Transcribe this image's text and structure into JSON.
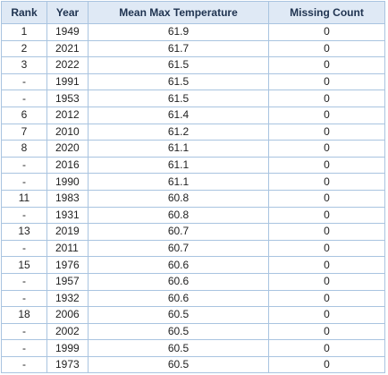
{
  "table": {
    "headers": [
      "Rank",
      "Year",
      "Mean Max Temperature",
      "Missing Count"
    ],
    "rows": [
      [
        "1",
        "1949",
        "61.9",
        "0"
      ],
      [
        "2",
        "2021",
        "61.7",
        "0"
      ],
      [
        "3",
        "2022",
        "61.5",
        "0"
      ],
      [
        "-",
        "1991",
        "61.5",
        "0"
      ],
      [
        "-",
        "1953",
        "61.5",
        "0"
      ],
      [
        "6",
        "2012",
        "61.4",
        "0"
      ],
      [
        "7",
        "2010",
        "61.2",
        "0"
      ],
      [
        "8",
        "2020",
        "61.1",
        "0"
      ],
      [
        "-",
        "2016",
        "61.1",
        "0"
      ],
      [
        "-",
        "1990",
        "61.1",
        "0"
      ],
      [
        "11",
        "1983",
        "60.8",
        "0"
      ],
      [
        "-",
        "1931",
        "60.8",
        "0"
      ],
      [
        "13",
        "2019",
        "60.7",
        "0"
      ],
      [
        "-",
        "2011",
        "60.7",
        "0"
      ],
      [
        "15",
        "1976",
        "60.6",
        "0"
      ],
      [
        "-",
        "1957",
        "60.6",
        "0"
      ],
      [
        "-",
        "1932",
        "60.6",
        "0"
      ],
      [
        "18",
        "2006",
        "60.5",
        "0"
      ],
      [
        "-",
        "2002",
        "60.5",
        "0"
      ],
      [
        "-",
        "1999",
        "60.5",
        "0"
      ],
      [
        "-",
        "1973",
        "60.5",
        "0"
      ]
    ]
  }
}
